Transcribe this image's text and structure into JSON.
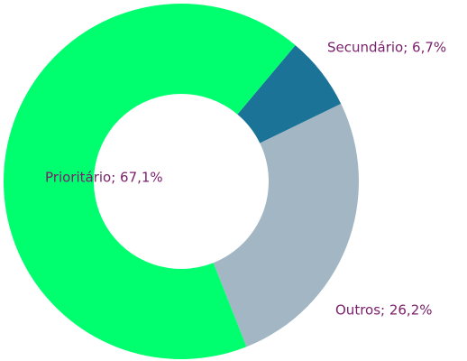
{
  "chart_data": {
    "type": "donut",
    "values": [
      6.7,
      26.2,
      67.1
    ],
    "value_labels": [
      "Secundário; 6,7%",
      "Outros; 26,2%",
      "Prioritário; 67,1%"
    ],
    "colors": [
      "#1b7398",
      "#a3b6c4",
      "#00ff6f"
    ]
  }
}
